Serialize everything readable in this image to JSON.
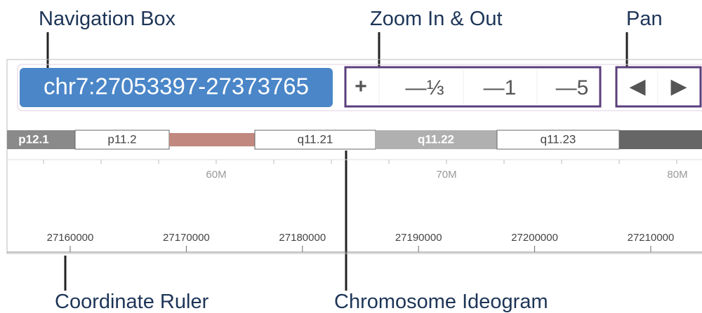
{
  "annotations": {
    "navigation_box": "Navigation Box",
    "zoom": "Zoom In & Out",
    "pan": "Pan",
    "ruler": "Coordinate Ruler",
    "ideogram": "Chromosome Ideogram"
  },
  "navigation": {
    "position": "chr7:27053397-27373765"
  },
  "zoom_buttons": [
    "+",
    "—⅓",
    "—1",
    "—5"
  ],
  "pan_buttons": [
    "◀",
    "▶"
  ],
  "ideogram": {
    "bands": [
      "p12.1",
      "p11.2",
      "q11.21",
      "q11.22",
      "q11.23"
    ],
    "scale_labels": [
      "60M",
      "70M",
      "80M"
    ]
  },
  "ruler": {
    "labels": [
      "27160000",
      "27170000",
      "27180000",
      "27190000",
      "27200000",
      "27210000"
    ]
  }
}
